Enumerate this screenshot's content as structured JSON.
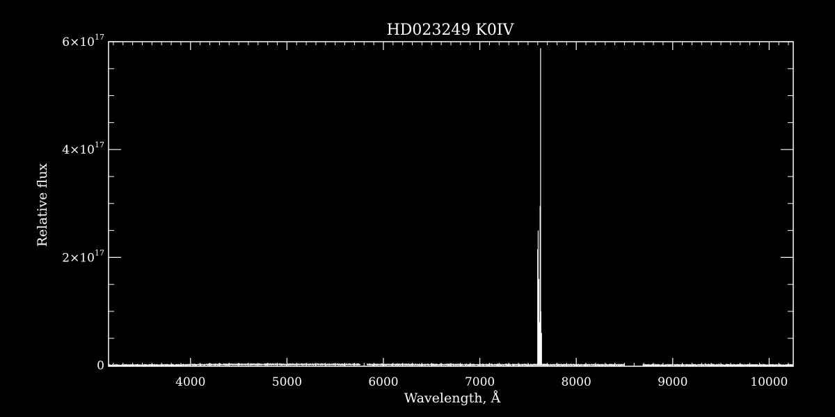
{
  "chart_data": {
    "type": "line",
    "title": "HD023249   K0IV",
    "xlabel": "Wavelength, Å",
    "ylabel": "Relative flux",
    "xlim": [
      3150,
      10250
    ],
    "ylim": [
      -1800000000000000.0,
      6e+17
    ],
    "grid": false,
    "legend": "none",
    "x_ticks": [
      {
        "value": 4000,
        "label": "4000"
      },
      {
        "value": 5000,
        "label": "5000"
      },
      {
        "value": 6000,
        "label": "6000"
      },
      {
        "value": 7000,
        "label": "7000"
      },
      {
        "value": 8000,
        "label": "8000"
      },
      {
        "value": 9000,
        "label": "9000"
      },
      {
        "value": 10000,
        "label": "10000"
      }
    ],
    "y_ticks": [
      {
        "value": 0,
        "mantissa": "0",
        "exponent": ""
      },
      {
        "value": 2e+17,
        "mantissa": "2×10",
        "exponent": "17"
      },
      {
        "value": 4e+17,
        "mantissa": "4×10",
        "exponent": "17"
      },
      {
        "value": 6e+17,
        "mantissa": "6×10",
        "exponent": "17"
      }
    ],
    "series": [
      {
        "color": "#ffffff",
        "continuum": [
          [
            3150,
            300000000000000.0
          ],
          [
            3400,
            500000000000000.0
          ],
          [
            3650,
            600000000000000.0
          ],
          [
            3900,
            800000000000000.0
          ],
          [
            4050,
            1400000000000000.0
          ],
          [
            4300,
            1700000000000000.0
          ],
          [
            4600,
            1900000000000000.0
          ],
          [
            5000,
            1900000000000000.0
          ],
          [
            5400,
            1900000000000000.0
          ],
          [
            5750,
            1800000000000000.0
          ],
          [
            5830,
            1600000000000000.0
          ],
          [
            6100,
            1500000000000000.0
          ],
          [
            6500,
            1400000000000000.0
          ],
          [
            7000,
            1300000000000000.0
          ],
          [
            7500,
            1200000000000000.0
          ],
          [
            7590,
            1200000000000000.0
          ],
          [
            7660,
            1200000000000000.0
          ],
          [
            8000,
            1100000000000000.0
          ],
          [
            8500,
            1000000000000000.0
          ],
          [
            8700,
            900000000000000.0
          ],
          [
            9000,
            800000000000000.0
          ],
          [
            9300,
            800000000000000.0
          ],
          [
            9600,
            700000000000000.0
          ],
          [
            10000,
            600000000000000.0
          ],
          [
            10250,
            600000000000000.0
          ]
        ],
        "noise_amplitude": 2200000000000000.0,
        "gaps": [
          [
            5760,
            5830
          ],
          [
            8500,
            8690
          ],
          [
            9000,
            9010
          ]
        ],
        "spikes": [
          [
            7600,
            2.15e+17
          ],
          [
            7605,
            2.5e+17
          ],
          [
            7612,
            1.6e+17
          ],
          [
            7620,
            8e+16
          ],
          [
            7625,
            2.95e+17
          ],
          [
            7630,
            5.88e+17
          ],
          [
            7633,
            1e+17
          ],
          [
            7640,
            6e+16
          ],
          [
            9340,
            4000000000000000.0
          ],
          [
            9370,
            3000000000000000.0
          ],
          [
            9410,
            2500000000000000.0
          ],
          [
            9480,
            3000000000000000.0
          ]
        ]
      }
    ]
  }
}
